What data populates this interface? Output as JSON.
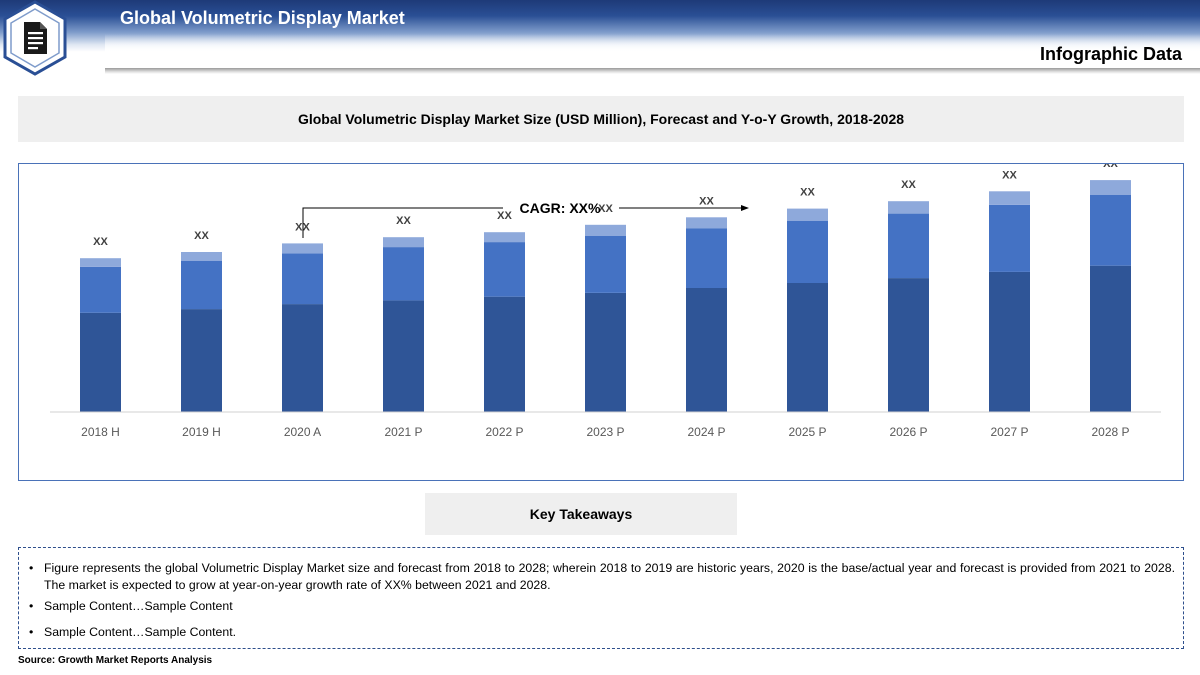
{
  "header": {
    "title": "Global Volumetric Display Market",
    "subtitle": "Infographic Data",
    "logo_icon": "document-icon"
  },
  "chart_title": "Global Volumetric Display Market Size (USD Million), Forecast and Y-o-Y Growth, 2018-2028",
  "chart_data": {
    "type": "bar",
    "stacked": true,
    "categories": [
      "2018 H",
      "2019 H",
      "2020 A",
      "2021 P",
      "2022 P",
      "2023 P",
      "2024 P",
      "2025 P",
      "2026 P",
      "2027 P",
      "2028 P"
    ],
    "series": [
      {
        "values": [
          80,
          83,
          87,
          90,
          93,
          96,
          100,
          104,
          108,
          113,
          118
        ],
        "color": "#2f5597"
      },
      {
        "values": [
          37,
          39,
          41,
          43,
          44,
          46,
          48,
          50,
          52,
          54,
          57
        ],
        "color": "#4472c4"
      },
      {
        "values": [
          7,
          7,
          8,
          8,
          8,
          9,
          9,
          10,
          10,
          11,
          12
        ],
        "color": "#8ea9db"
      }
    ],
    "data_labels": [
      "XX",
      "XX",
      "XX",
      "XX",
      "XX",
      "XX",
      "XX",
      "XX",
      "XX",
      "XX",
      "XX"
    ],
    "annotation": "CAGR: XX%",
    "ylim": [
      0,
      200
    ],
    "grid": false,
    "legend": "none"
  },
  "takeaways": {
    "title": "Key Takeaways",
    "bullet": "•",
    "items": [
      "Figure represents the global Volumetric Display Market size and forecast from 2018 to 2028; wherein 2018 to 2019 are historic years, 2020 is the base/actual year and forecast is provided from 2021 to 2028. The market is expected to grow at year-on-year growth rate of XX% between 2021 and 2028.",
      "Sample Content…Sample Content",
      "Sample Content…Sample Content."
    ]
  },
  "source": "Source: Growth Market Reports Analysis"
}
